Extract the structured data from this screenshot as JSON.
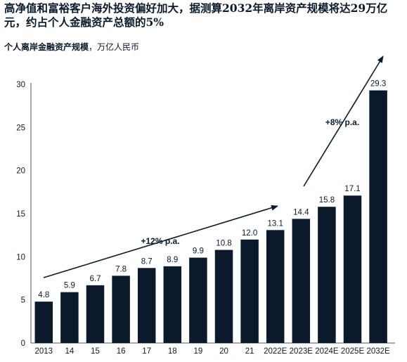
{
  "title": "高净值和富裕客户海外投资偏好加大，据测算2032年离岸资产规模将达29万亿元，约占个人金融资产总额的5%",
  "subtitle_bold": "个人离岸金融资产规模",
  "subtitle_unit": "，万亿人民币",
  "chart_data": {
    "type": "bar",
    "categories": [
      "2013",
      "14",
      "15",
      "16",
      "17",
      "18",
      "19",
      "20",
      "21",
      "2022E",
      "2023E",
      "2024E",
      "2025E",
      "2032E"
    ],
    "values": [
      4.8,
      5.9,
      6.7,
      7.8,
      8.7,
      8.9,
      9.9,
      10.8,
      12.0,
      13.1,
      14.4,
      15.8,
      17.1,
      29.3
    ],
    "value_labels": [
      "4.8",
      "5.9",
      "6.7",
      "7.8",
      "8.7",
      "8.9",
      "9.9",
      "10.8",
      "12.0",
      "13.1",
      "14.4",
      "15.8",
      "17.1",
      "29.3"
    ],
    "y_ticks": [
      "0",
      "5",
      "10",
      "15",
      "20",
      "25",
      "30"
    ],
    "ylim": [
      0,
      30
    ],
    "grid": false,
    "bar_color": "#0b1a2b",
    "annotations": [
      {
        "text": "+12% p.a."
      },
      {
        "text": "+8% p.a."
      }
    ]
  }
}
